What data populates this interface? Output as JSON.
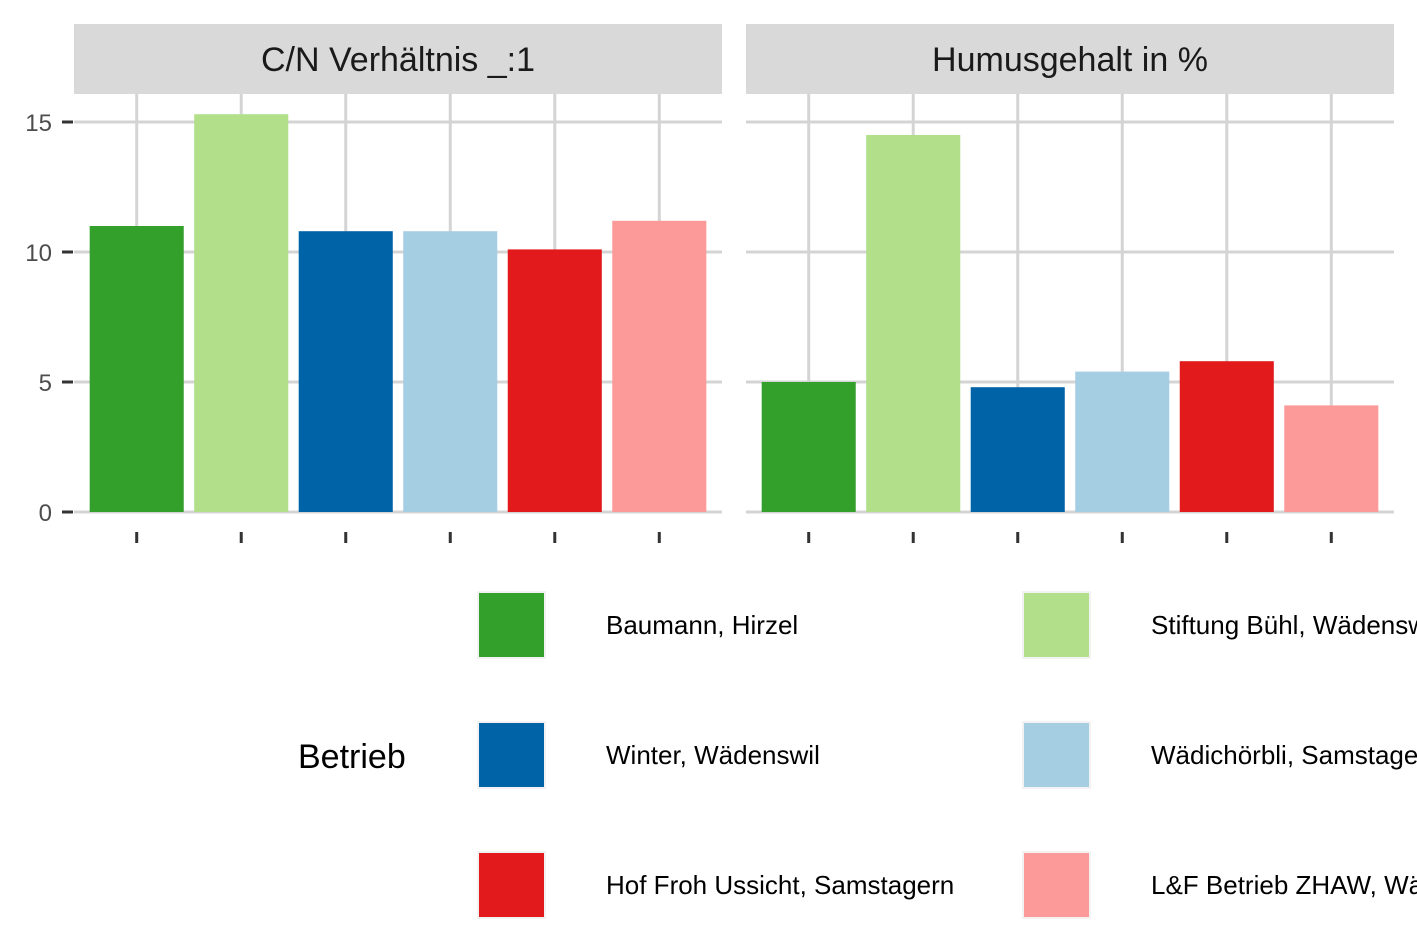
{
  "chart_data": {
    "type": "bar",
    "facets": [
      {
        "title": "C/N Verhältnis _:1",
        "values": [
          11.0,
          15.3,
          10.8,
          10.8,
          10.1,
          11.2
        ]
      },
      {
        "title": "Humusgehalt in %",
        "values": [
          5.0,
          14.5,
          4.8,
          5.4,
          5.8,
          4.1
        ]
      }
    ],
    "categories": [
      "Baumann, Hirzel",
      "Stiftung Bühl, Wädenswil",
      "Winter, Wädenswil",
      "Wädichörbli, Samstagern",
      "Hof Froh Ussicht, Samstagern",
      "L&F Betrieb ZHAW, Wädenswil"
    ],
    "colors": [
      "#33a02c",
      "#b2df8a",
      "#0063a8",
      "#a6cee3",
      "#e31a1c",
      "#fb9a99"
    ],
    "ylim": [
      0,
      16.5
    ],
    "y_ticks": [
      0,
      5,
      10,
      15
    ],
    "xlabel": "",
    "ylabel": "",
    "legend": {
      "title": "Betrieb",
      "position": "bottom",
      "columns": 2
    },
    "grid": true
  }
}
